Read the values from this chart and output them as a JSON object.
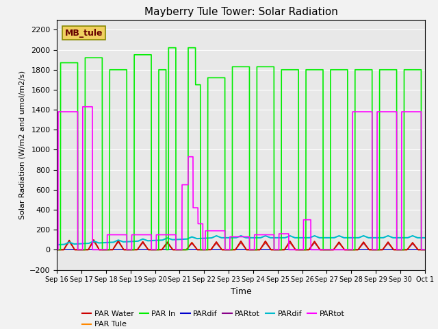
{
  "title": "Mayberry Tule Tower: Solar Radiation",
  "xlabel": "Time",
  "ylabel": "Solar Radiation (W/m2 and umol/m2/s)",
  "ylim": [
    -200,
    2300
  ],
  "xlim": [
    0,
    15
  ],
  "yticks": [
    -200,
    0,
    200,
    400,
    600,
    800,
    1000,
    1200,
    1400,
    1600,
    1800,
    2000,
    2200
  ],
  "xtick_labels": [
    "Sep 16",
    "Sep 17",
    "Sep 18",
    "Sep 19",
    "Sep 20",
    "Sep 21",
    "Sep 22",
    "Sep 23",
    "Sep 24",
    "Sep 25",
    "Sep 26",
    "Sep 27",
    "Sep 28",
    "Sep 29",
    "Sep 30",
    "Oct 1"
  ],
  "legend_label": "MB_tule",
  "par_water_color": "#cc0000",
  "par_tule_color": "#ff8800",
  "par_in_color": "#00ee00",
  "pardif_blue_color": "#0000cc",
  "partot_purple_color": "#880088",
  "pardif_cyan_color": "#00bbcc",
  "partot_magenta_color": "#ff00ff",
  "bg_color": "#e8e8e8",
  "fig_bg_color": "#f2f2f2",
  "grid_color": "#ffffff"
}
